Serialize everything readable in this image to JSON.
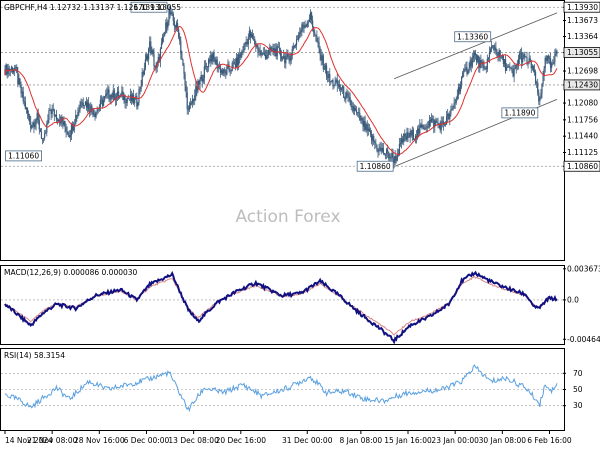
{
  "header": {
    "symbol_line": "GBPCHF,H4  1.12732 1.13137 1.12670 1.13055"
  },
  "watermark": "Action Forex",
  "colors": {
    "candle": "#3a5a7a",
    "ma": "#e03030",
    "macd": "#101080",
    "signal": "#d88888",
    "rsi": "#5aa0e0",
    "grid": "#999999"
  },
  "chart_data": [
    {
      "type": "candlestick",
      "title": "GBPCHF,H4  1.12732 1.13137 1.12670 1.13055",
      "ylim": [
        1.0905,
        1.1405
      ],
      "y_ticks": [
        "1.13930",
        "1.13673",
        "1.13364",
        "1.13055",
        "1.12698",
        "1.12430",
        "1.12080",
        "1.11756",
        "1.11440",
        "1.11125",
        "1.10860"
      ],
      "annotations": [
        {
          "label": "1.13930",
          "x": "2024-12-09 12:00",
          "y": 1.1393
        },
        {
          "label": "1.13360",
          "x": "2025-01-28 20:00",
          "y": 1.1336
        },
        {
          "label": "1.11060",
          "x": "2024-11-20 00:00",
          "y": 1.1106
        },
        {
          "label": "1.10860",
          "x": "2025-01-13 16:00",
          "y": 1.1086
        },
        {
          "label": "1.11890",
          "x": "2025-02-05 04:00",
          "y": 1.1189
        }
      ],
      "horizontal_lines": [
        1.1393,
        1.13055,
        1.1243,
        1.1086
      ],
      "price_tags": [
        {
          "label": "1.13930",
          "y": 1.1393,
          "highlight": false
        },
        {
          "label": "1.13055",
          "y": 1.13055,
          "highlight": true
        },
        {
          "label": "1.12430",
          "y": 1.1243,
          "highlight": true
        },
        {
          "label": "1.10860",
          "y": 1.1086,
          "highlight": false
        }
      ],
      "channel": {
        "upper": [
          [
            "2025-01-13 12:00",
            1.1255
          ],
          [
            "2025-02-07 20:00",
            1.1382
          ]
        ],
        "lower": [
          [
            "2025-01-13 16:00",
            1.1086
          ],
          [
            "2025-02-07 20:00",
            1.1215
          ]
        ]
      },
      "anchors": [
        [
          "2024-11-14 00:00",
          1.1273
        ],
        [
          "2024-11-15 12:00",
          1.1275
        ],
        [
          "2024-11-16 20:00",
          1.1213
        ],
        [
          "2024-11-18 00:00",
          1.1167
        ],
        [
          "2024-11-19 00:00",
          1.1178
        ],
        [
          "2024-11-20 00:00",
          1.113
        ],
        [
          "2024-11-21 00:00",
          1.1195
        ],
        [
          "2024-11-22 08:00",
          1.118
        ],
        [
          "2024-11-24 00:00",
          1.115
        ],
        [
          "2024-11-26 00:00",
          1.1215
        ],
        [
          "2024-11-28 00:00",
          1.119
        ],
        [
          "2024-11-30 00:00",
          1.1225
        ],
        [
          "2024-12-02 12:00",
          1.122
        ],
        [
          "2024-12-04 12:00",
          1.121
        ],
        [
          "2024-12-05 12:00",
          1.1268
        ],
        [
          "2024-12-06 12:00",
          1.132
        ],
        [
          "2024-12-07 12:00",
          1.127
        ],
        [
          "2024-12-09 12:00",
          1.1383
        ],
        [
          "2024-12-11 00:00",
          1.1345
        ],
        [
          "2024-12-12 12:00",
          1.119
        ],
        [
          "2024-12-13 12:00",
          1.1225
        ],
        [
          "2024-12-16 00:00",
          1.13
        ],
        [
          "2024-12-18 00:00",
          1.1265
        ],
        [
          "2024-12-20 00:00",
          1.1285
        ],
        [
          "2024-12-22 00:00",
          1.134
        ],
        [
          "2024-12-24 00:00",
          1.13
        ],
        [
          "2024-12-26 00:00",
          1.131
        ],
        [
          "2024-12-28 00:00",
          1.129
        ],
        [
          "2024-12-30 00:00",
          1.135
        ],
        [
          "2024-12-31 12:00",
          1.1375
        ],
        [
          "2025-01-02 00:00",
          1.13
        ],
        [
          "2025-01-03 12:00",
          1.125
        ],
        [
          "2025-01-05 00:00",
          1.124
        ],
        [
          "2025-01-07 00:00",
          1.12
        ],
        [
          "2025-01-09 00:00",
          1.116
        ],
        [
          "2025-01-11 00:00",
          1.112
        ],
        [
          "2025-01-13 16:00",
          1.11
        ],
        [
          "2025-01-15 00:00",
          1.114
        ],
        [
          "2025-01-17 00:00",
          1.115
        ],
        [
          "2025-01-19 00:00",
          1.1172
        ],
        [
          "2025-01-21 00:00",
          1.1165
        ],
        [
          "2025-01-22 12:00",
          1.119
        ],
        [
          "2025-01-24 00:00",
          1.1255
        ],
        [
          "2025-01-26 00:00",
          1.13
        ],
        [
          "2025-01-27 12:00",
          1.127
        ],
        [
          "2025-01-28 20:00",
          1.132
        ],
        [
          "2025-01-30 08:00",
          1.129
        ],
        [
          "2025-02-01 00:00",
          1.126
        ],
        [
          "2025-02-02 00:00",
          1.13
        ],
        [
          "2025-02-04 00:00",
          1.128
        ],
        [
          "2025-02-05 04:00",
          1.1205
        ],
        [
          "2025-02-06 00:00",
          1.13
        ],
        [
          "2025-02-07 00:00",
          1.1275
        ],
        [
          "2025-02-07 20:00",
          1.13055
        ]
      ]
    },
    {
      "type": "line",
      "title": "MACD(12,26,9) 0.000086 0.000030",
      "ylim": [
        -0.0052,
        0.004
      ],
      "y_ticks": [
        "0.003673",
        "0.0",
        "-0.004641"
      ],
      "anchors": [
        [
          "2024-11-14 00:00",
          -0.0005
        ],
        [
          "2024-11-18 00:00",
          -0.003
        ],
        [
          "2024-11-20 00:00",
          -0.0015
        ],
        [
          "2024-11-22 00:00",
          -0.0005
        ],
        [
          "2024-11-25 00:00",
          -0.001
        ],
        [
          "2024-11-28 00:00",
          0.0005
        ],
        [
          "2024-12-02 00:00",
          0.0012
        ],
        [
          "2024-12-04 12:00",
          0.0
        ],
        [
          "2024-12-06 12:00",
          0.0018
        ],
        [
          "2024-12-10 00:00",
          0.003
        ],
        [
          "2024-12-12 12:00",
          -0.0012
        ],
        [
          "2024-12-14 00:00",
          -0.0025
        ],
        [
          "2024-12-17 00:00",
          -0.0003
        ],
        [
          "2024-12-20 00:00",
          0.001
        ],
        [
          "2024-12-23 00:00",
          0.002
        ],
        [
          "2024-12-27 00:00",
          0.0005
        ],
        [
          "2024-12-30 00:00",
          0.0008
        ],
        [
          "2025-01-02 00:00",
          0.0022
        ],
        [
          "2025-01-05 00:00",
          0.0005
        ],
        [
          "2025-01-08 00:00",
          -0.0015
        ],
        [
          "2025-01-11 00:00",
          -0.0032
        ],
        [
          "2025-01-13 12:00",
          -0.0048
        ],
        [
          "2025-01-16 00:00",
          -0.003
        ],
        [
          "2025-01-19 00:00",
          -0.002
        ],
        [
          "2025-01-22 00:00",
          -0.0005
        ],
        [
          "2025-01-24 00:00",
          0.0022
        ],
        [
          "2025-01-26 00:00",
          0.0032
        ],
        [
          "2025-01-29 00:00",
          0.002
        ],
        [
          "2025-01-31 00:00",
          0.0014
        ],
        [
          "2025-02-03 00:00",
          0.0006
        ],
        [
          "2025-02-04 12:00",
          -0.001
        ],
        [
          "2025-02-05 08:00",
          -0.0008
        ],
        [
          "2025-02-06 12:00",
          0.0002
        ],
        [
          "2025-02-07 20:00",
          8.6e-05
        ]
      ]
    },
    {
      "type": "line",
      "title": "RSI(14) 58.3154",
      "ylim": [
        0,
        100
      ],
      "y_ticks": [
        "70",
        "50",
        "30"
      ],
      "reference_lines": [
        70,
        50,
        30
      ],
      "anchors": [
        [
          "2024-11-14 00:00",
          44
        ],
        [
          "2024-11-16 12:00",
          36
        ],
        [
          "2024-11-18 00:00",
          28
        ],
        [
          "2024-11-20 00:00",
          40
        ],
        [
          "2024-11-22 00:00",
          52
        ],
        [
          "2024-11-24 00:00",
          38
        ],
        [
          "2024-11-27 00:00",
          60
        ],
        [
          "2024-11-30 00:00",
          50
        ],
        [
          "2024-12-03 00:00",
          56
        ],
        [
          "2024-12-06 00:00",
          62
        ],
        [
          "2024-12-09 12:00",
          71
        ],
        [
          "2024-12-12 12:00",
          25
        ],
        [
          "2024-12-15 00:00",
          52
        ],
        [
          "2024-12-18 00:00",
          46
        ],
        [
          "2024-12-21 00:00",
          56
        ],
        [
          "2024-12-24 00:00",
          42
        ],
        [
          "2024-12-28 00:00",
          52
        ],
        [
          "2024-12-31 12:00",
          66
        ],
        [
          "2025-01-03 00:00",
          46
        ],
        [
          "2025-01-06 00:00",
          48
        ],
        [
          "2025-01-09 00:00",
          38
        ],
        [
          "2025-01-12 00:00",
          36
        ],
        [
          "2025-01-15 00:00",
          45
        ],
        [
          "2025-01-18 00:00",
          48
        ],
        [
          "2025-01-21 00:00",
          50
        ],
        [
          "2025-01-24 00:00",
          60
        ],
        [
          "2025-01-26 00:00",
          78
        ],
        [
          "2025-01-28 12:00",
          60
        ],
        [
          "2025-01-31 00:00",
          64
        ],
        [
          "2025-02-03 00:00",
          52
        ],
        [
          "2025-02-05 04:00",
          32
        ],
        [
          "2025-02-06 00:00",
          57
        ],
        [
          "2025-02-07 00:00",
          48
        ],
        [
          "2025-02-07 20:00",
          58.3154
        ]
      ]
    }
  ],
  "x_axis": {
    "ticks": [
      {
        "label": "14 Nov 2024",
        "t": "2024-11-14 00:00"
      },
      {
        "label": "21 Nov 08:00",
        "t": "2024-11-21 08:00"
      },
      {
        "label": "28 Nov 16:00",
        "t": "2024-11-28 16:00"
      },
      {
        "label": "6 Dec 00:00",
        "t": "2024-12-06 00:00"
      },
      {
        "label": "13 Dec 08:00",
        "t": "2024-12-13 08:00"
      },
      {
        "label": "20 Dec 16:00",
        "t": "2024-12-20 16:00"
      },
      {
        "label": "31 Dec 00:00",
        "t": "2024-12-31 00:00"
      },
      {
        "label": "8 Jan 08:00",
        "t": "2025-01-08 08:00"
      },
      {
        "label": "15 Jan 16:00",
        "t": "2025-01-15 16:00"
      },
      {
        "label": "23 Jan 00:00",
        "t": "2025-01-23 00:00"
      },
      {
        "label": "30 Jan 08:00",
        "t": "2025-01-30 08:00"
      },
      {
        "label": "6 Feb 16:00",
        "t": "2025-02-06 16:00"
      }
    ]
  }
}
